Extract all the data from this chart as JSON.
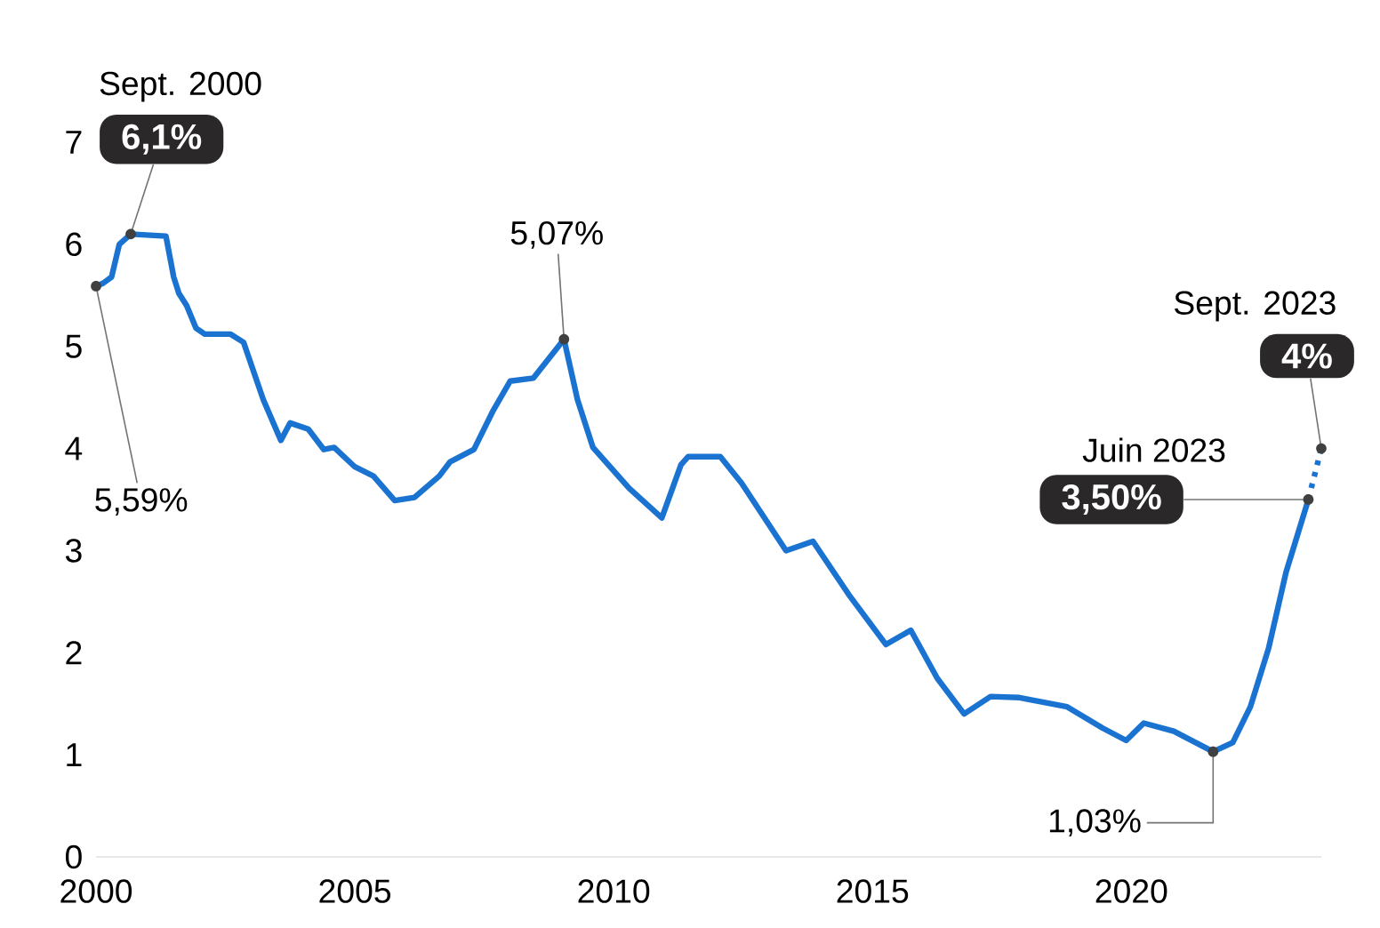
{
  "chart_data": {
    "type": "line",
    "xlim": [
      2000,
      2023.67
    ],
    "ylim": [
      0,
      7
    ],
    "xticks": [
      2000,
      2005,
      2010,
      2015,
      2020
    ],
    "yticks": [
      0,
      1,
      2,
      3,
      4,
      5,
      6,
      7
    ],
    "series": [
      {
        "color": "#1a73d0",
        "line_style": "solid",
        "x": [
          2000.0,
          2000.14,
          2000.3,
          2000.45,
          2000.67,
          2001.35,
          2001.5,
          2001.6,
          2001.75,
          2001.93,
          2002.1,
          2002.6,
          2002.85,
          2003.23,
          2003.57,
          2003.75,
          2004.1,
          2004.4,
          2004.6,
          2005.0,
          2005.36,
          2005.77,
          2006.15,
          2006.63,
          2006.84,
          2007.3,
          2007.66,
          2008.0,
          2008.45,
          2009.04,
          2009.3,
          2009.6,
          2010.3,
          2010.93,
          2011.3,
          2011.44,
          2012.06,
          2012.47,
          2013.33,
          2013.85,
          2014.54,
          2015.26,
          2015.74,
          2016.25,
          2016.77,
          2017.28,
          2017.84,
          2018.76,
          2019.45,
          2019.9,
          2020.24,
          2020.82,
          2021.58,
          2021.96,
          2022.3,
          2022.65,
          2022.99,
          2023.42
        ],
        "values": [
          5.59,
          5.62,
          5.68,
          6.0,
          6.1,
          6.08,
          5.68,
          5.52,
          5.4,
          5.18,
          5.12,
          5.12,
          5.04,
          4.48,
          4.08,
          4.25,
          4.19,
          3.99,
          4.01,
          3.82,
          3.73,
          3.49,
          3.52,
          3.73,
          3.87,
          3.99,
          4.36,
          4.66,
          4.69,
          5.07,
          4.48,
          4.01,
          3.61,
          3.32,
          3.84,
          3.92,
          3.92,
          3.66,
          3.0,
          3.09,
          2.57,
          2.08,
          2.22,
          1.75,
          1.4,
          1.57,
          1.56,
          1.47,
          1.26,
          1.14,
          1.31,
          1.23,
          1.03,
          1.12,
          1.47,
          2.04,
          2.79,
          3.5
        ]
      },
      {
        "color": "#1a73d0",
        "line_style": "dotted",
        "x": [
          2023.42,
          2023.67
        ],
        "values": [
          3.5,
          4.0
        ]
      }
    ],
    "annotations": [
      "Sept. 2000",
      {
        "text": "6,1%",
        "x": 2000.67,
        "y": 6.1
      },
      {
        "text": "5,59%",
        "x": 2000.0,
        "y": 5.59
      },
      {
        "text": "5,07%",
        "x": 2009.04,
        "y": 5.07
      },
      {
        "text": "1,03%",
        "x": 2021.58,
        "y": 1.03
      },
      "Juin 2023",
      {
        "text": "3,50%",
        "x": 2023.42,
        "y": 3.5
      },
      "Sept. 2023",
      {
        "text": "4%",
        "x": 2023.67,
        "y": 4.0
      }
    ]
  }
}
